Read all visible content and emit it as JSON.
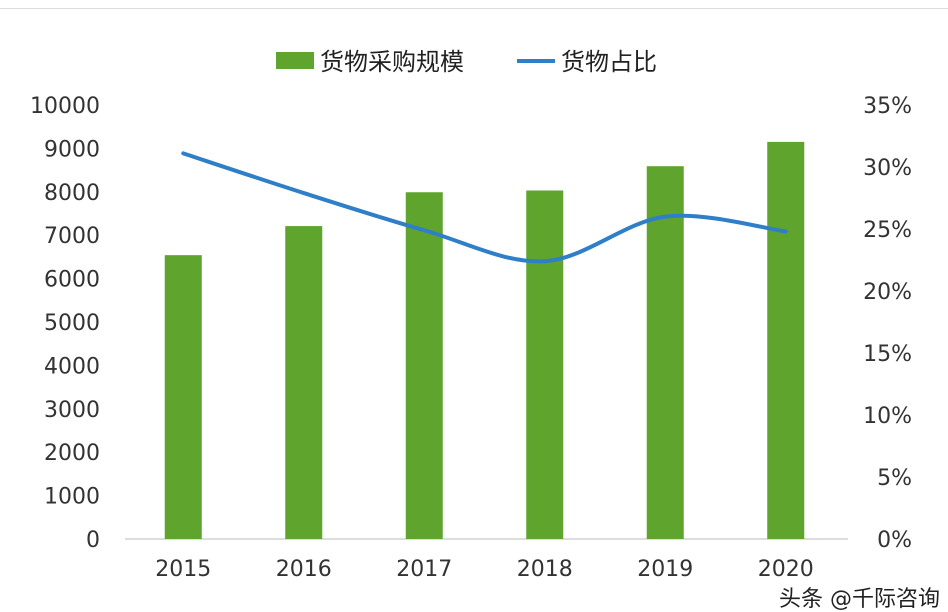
{
  "chart_data": {
    "type": "bar+line",
    "categories": [
      "2015",
      "2016",
      "2017",
      "2018",
      "2019",
      "2020"
    ],
    "series": [
      {
        "name": "货物采购规模",
        "type": "bar",
        "axis": "left",
        "color": "#5fa42d",
        "values": [
          6540,
          7210,
          7990,
          8030,
          8590,
          9150
        ]
      },
      {
        "name": "货物占比",
        "type": "line",
        "axis": "right",
        "color": "#2e7fc7",
        "values": [
          31.1,
          27.9,
          24.9,
          22.4,
          26.0,
          24.8
        ]
      }
    ],
    "left_axis": {
      "ylim": [
        0,
        10000
      ],
      "ticks": [
        "0",
        "1000",
        "2000",
        "3000",
        "4000",
        "5000",
        "6000",
        "7000",
        "8000",
        "9000",
        "10000"
      ]
    },
    "right_axis": {
      "ylim": [
        0,
        35
      ],
      "ticks": [
        "0%",
        "5%",
        "10%",
        "15%",
        "20%",
        "25%",
        "30%",
        "35%"
      ]
    },
    "legend": "top-center",
    "grid": false
  },
  "watermark": "头条 @千际咨询"
}
